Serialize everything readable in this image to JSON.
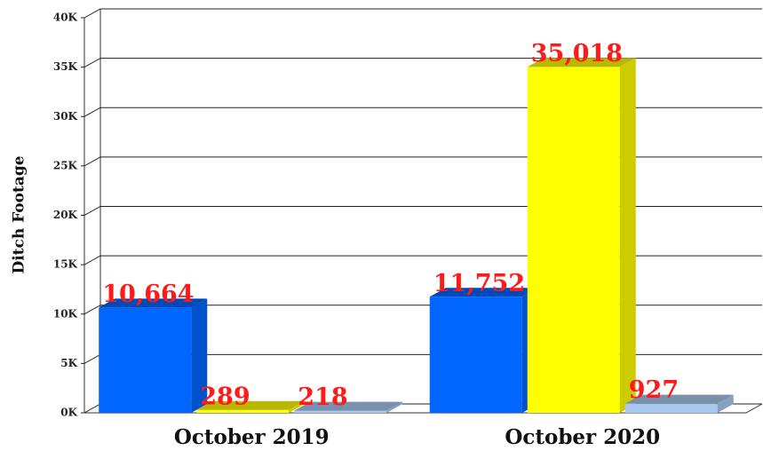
{
  "chart_data": {
    "type": "bar3d",
    "y_label": "Ditch Footage",
    "categories": [
      "October 2019",
      "October 2020"
    ],
    "series": [
      {
        "color": "#0066ff",
        "values": [
          10664,
          11752
        ],
        "value_labels": [
          "10,664",
          "11,752"
        ]
      },
      {
        "color": "#ffff00",
        "values": [
          289,
          35018
        ],
        "value_labels": [
          "289",
          "35,018"
        ]
      },
      {
        "color": "#a8c8f0",
        "values": [
          218,
          927
        ],
        "value_labels": [
          "218",
          "927"
        ]
      }
    ],
    "ylim": [
      0,
      40000
    ],
    "yticks": [
      {
        "value": 0,
        "label": "0K"
      },
      {
        "value": 5000,
        "label": "5K"
      },
      {
        "value": 10000,
        "label": "10K"
      },
      {
        "value": 15000,
        "label": "15K"
      },
      {
        "value": 20000,
        "label": "20K"
      },
      {
        "value": 25000,
        "label": "25K"
      },
      {
        "value": 30000,
        "label": "30K"
      },
      {
        "value": 35000,
        "label": "35K"
      },
      {
        "value": 40000,
        "label": "40K"
      }
    ],
    "grid": true
  }
}
